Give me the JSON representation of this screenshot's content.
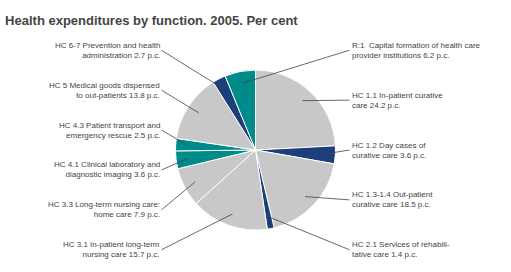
{
  "chart_data": {
    "type": "pie",
    "title": "Health expenditures by function. 2005. Per cent",
    "categories": [
      "HC 1.1 In-patient curative\ncare 24.2 p.c.",
      "HC 1.2 Day cases of\ncurative care 3.6 p.c.",
      "HC 1.3-1.4 Out-patient\ncurative care 18.5 p.c.",
      "HC 2.1 Services of rehabili-\ntative care 1.4 p.c.",
      "HC 3.1 In-patient long-term\nnursing care 15.7 p.c.",
      "HC 3.3 Long-term nursing care:\nhome care 7.9 p.c.",
      "HC 4.1 Clinical laboratory and\ndiagnostic imaging 3.6 p.c.",
      "HC 4.3 Patient transport and\nemergency rescue 2.5 p.c.",
      "HC 5 Medical goods dispensed\nto out-patients 13.8 p.c.",
      "HC 6-7 Prevention and health\nadministration 2.7 p.c.",
      "R:1  Capital formation of health care\nprovider institutions 6.2 p.c."
    ],
    "values": [
      24.2,
      3.6,
      18.5,
      1.4,
      15.7,
      7.9,
      3.6,
      2.5,
      13.8,
      2.7,
      6.2
    ],
    "colors": [
      "#c8c8c8",
      "#1b3f7a",
      "#c8c8c8",
      "#1b3f7a",
      "#c8c8c8",
      "#c8c8c8",
      "#008b8b",
      "#008b8b",
      "#c8c8c8",
      "#1b3f7a",
      "#008b8b"
    ]
  }
}
